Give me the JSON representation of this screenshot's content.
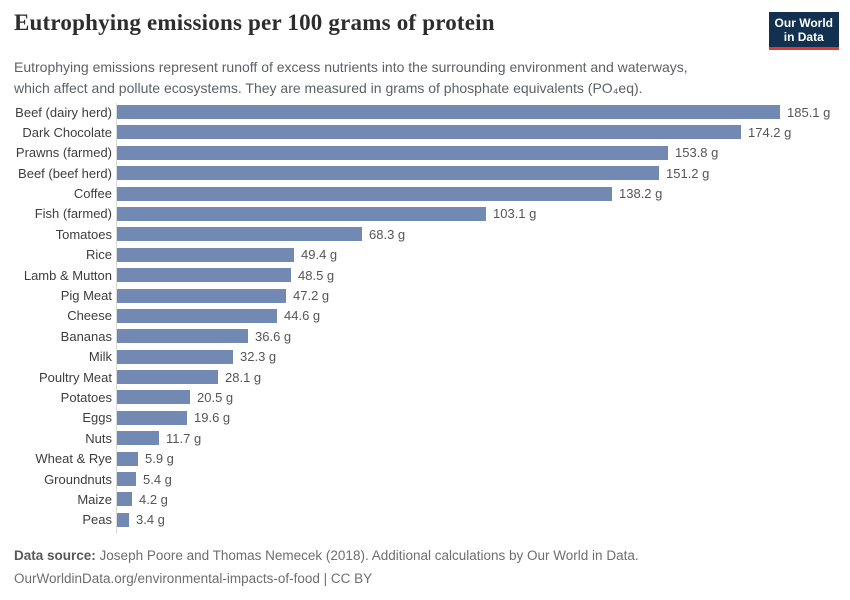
{
  "header": {
    "title": "Eutrophying emissions per 100 grams of protein",
    "subtitle_lines": [
      "Eutrophying emissions represent runoff of excess nutrients into the surrounding environment and waterways,",
      "which affect and pollute ecosystems. They are measured in grams of phosphate equivalents (PO₄eq)."
    ],
    "logo": {
      "line1": "Our World",
      "line2": "in Data",
      "bg_color": "#12304f",
      "accent_color": "#e0392e"
    }
  },
  "chart_data": {
    "type": "bar",
    "orientation": "horizontal",
    "title": "Eutrophying emissions per 100 grams of protein",
    "unit": "g",
    "bar_color": "#7189b3",
    "value_labels": true,
    "grid": false,
    "legend": false,
    "xlim": [
      0,
      185.1
    ],
    "categories": [
      "Beef (dairy herd)",
      "Dark Chocolate",
      "Prawns (farmed)",
      "Beef (beef herd)",
      "Coffee",
      "Fish (farmed)",
      "Tomatoes",
      "Rice",
      "Lamb & Mutton",
      "Pig Meat",
      "Cheese",
      "Bananas",
      "Milk",
      "Poultry Meat",
      "Potatoes",
      "Eggs",
      "Nuts",
      "Wheat & Rye",
      "Groundnuts",
      "Maize",
      "Peas"
    ],
    "values": [
      185.1,
      174.2,
      153.8,
      151.2,
      138.2,
      103.1,
      68.3,
      49.4,
      48.5,
      47.2,
      44.6,
      36.6,
      32.3,
      28.1,
      20.5,
      19.6,
      11.7,
      5.9,
      5.4,
      4.2,
      3.4
    ]
  },
  "footer": {
    "source_label": "Data source:",
    "source_text": "Joseph Poore and Thomas Nemecek (2018). Additional calculations by Our World in Data.",
    "license_line": "OurWorldinData.org/environmental-impacts-of-food | CC BY"
  }
}
